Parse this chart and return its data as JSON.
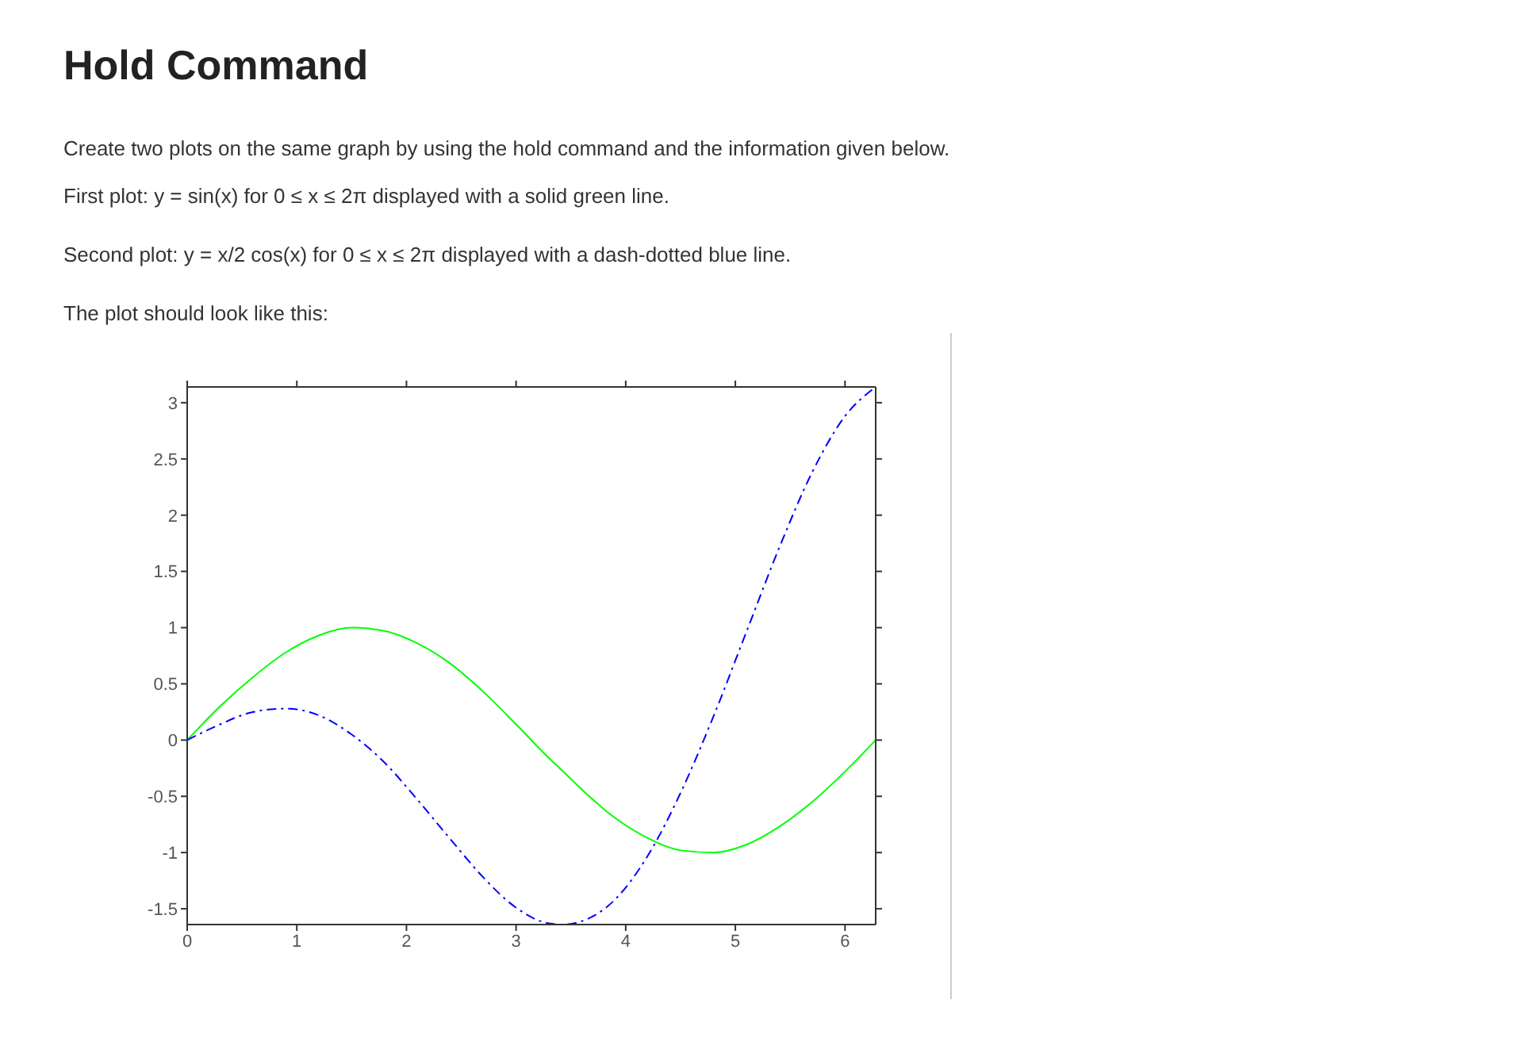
{
  "chart_data": {
    "type": "line",
    "title": "Hold Command",
    "annotations": [
      "Create two plots on the same graph by using the hold command and the information given below.",
      "First plot:  y = sin(x)  for  0 ≤ x ≤ 2π  displayed with a solid green line.",
      "Second plot:  y = x/2 cos(x)  for  0 ≤ x ≤ 2π  displayed with a dash-dotted blue line.",
      "The plot should look like this:"
    ],
    "x": [
      0,
      0.3,
      0.6,
      0.9,
      1.2,
      1.5,
      1.8,
      2.1,
      2.4,
      2.7,
      3.0,
      3.3,
      3.43,
      3.6,
      3.9,
      4.2,
      4.5,
      4.8,
      5.1,
      5.4,
      5.7,
      6.0,
      6.28
    ],
    "series": [
      {
        "color": "#00ff00",
        "line_style": "solid",
        "values": [
          0,
          0.3,
          0.56,
          0.78,
          0.93,
          1.0,
          0.97,
          0.86,
          0.68,
          0.43,
          0.14,
          -0.16,
          -0.28,
          -0.44,
          -0.69,
          -0.87,
          -0.98,
          -1.0,
          -0.93,
          -0.77,
          -0.55,
          -0.28,
          0
        ]
      },
      {
        "color": "#0000ff",
        "line_style": "dashdot",
        "values": [
          0,
          0.14,
          0.25,
          0.28,
          0.22,
          0.05,
          -0.2,
          -0.53,
          -0.88,
          -1.22,
          -1.49,
          -1.63,
          -1.64,
          -1.61,
          -1.42,
          -1.03,
          -0.47,
          0.21,
          0.96,
          1.71,
          2.38,
          2.88,
          3.14
        ]
      }
    ],
    "xlim": [
      0,
      6.28
    ],
    "xticks": [
      0,
      1,
      2,
      3,
      4,
      5,
      6
    ],
    "ylim": [
      -1.64,
      3.14
    ],
    "yticks": [
      -1.5,
      -1,
      -0.5,
      0,
      0.5,
      1,
      1.5,
      2,
      2.5,
      3
    ],
    "grid": false,
    "marker": "none"
  }
}
